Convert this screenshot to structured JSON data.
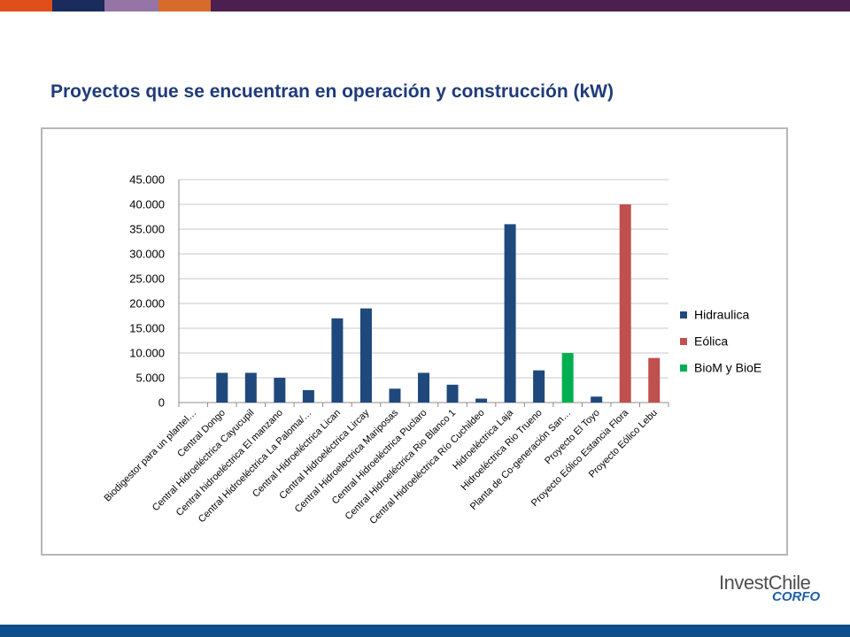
{
  "slide": {
    "title": "Proyectos que se encuentran en operación y construcción (kW)",
    "brand_colors": [
      "#e04e1b",
      "#1a2b5e",
      "#9575a6",
      "#d96b2a",
      "#4b1f4f",
      "#0d4f8b"
    ]
  },
  "logo": {
    "main": "InvestChile",
    "sub": "CORFO"
  },
  "chart_data": {
    "type": "bar",
    "title": "",
    "xlabel": "",
    "ylabel": "",
    "ylim": [
      0,
      45000
    ],
    "yticks": [
      "0",
      "5.000",
      "10.000",
      "15.000",
      "20.000",
      "25.000",
      "30.000",
      "35.000",
      "40.000",
      "45.000"
    ],
    "ytick_values": [
      0,
      5000,
      10000,
      15000,
      20000,
      25000,
      30000,
      35000,
      40000,
      45000
    ],
    "grid": true,
    "legend_position": "right",
    "categories": [
      "Biodigestor para un plantel…",
      "Central Dongo",
      "Central Hidroeléctrica Cayucupil",
      "Central hidroeléctrica El manzano",
      "Central Hidroeléctrica La Paloma/…",
      "Central Hidroeléctrica Lican",
      "Central Hidroeléctrica Lircay",
      "Central Hidroelectrica Mariposas",
      "Central Hidroeléctrica Puclaro",
      "Central Hidroeléctrica Rio Blanco 1",
      "Central Hidroeléctrica Río Cuchildeo",
      "Hidroeléctrica Laja",
      "Hidroeléctrica Rio Trueno",
      "Planta de Co-generación San…",
      "Proyecto El Toyo",
      "Proyecto Eólico Estancia Flora",
      "Proyecto Eólico Lebu"
    ],
    "values": [
      0,
      6000,
      6000,
      5000,
      2500,
      17000,
      19000,
      2800,
      6000,
      3600,
      800,
      36000,
      6500,
      10000,
      1200,
      40000,
      9000
    ],
    "series_index": [
      0,
      0,
      0,
      0,
      0,
      0,
      0,
      0,
      0,
      0,
      0,
      0,
      0,
      2,
      0,
      1,
      1
    ],
    "series": [
      {
        "name": "Hidraulica",
        "color": "#1f497d"
      },
      {
        "name": "Eólica",
        "color": "#c0504d"
      },
      {
        "name": "BioM y BioE",
        "color": "#00b050"
      }
    ]
  }
}
